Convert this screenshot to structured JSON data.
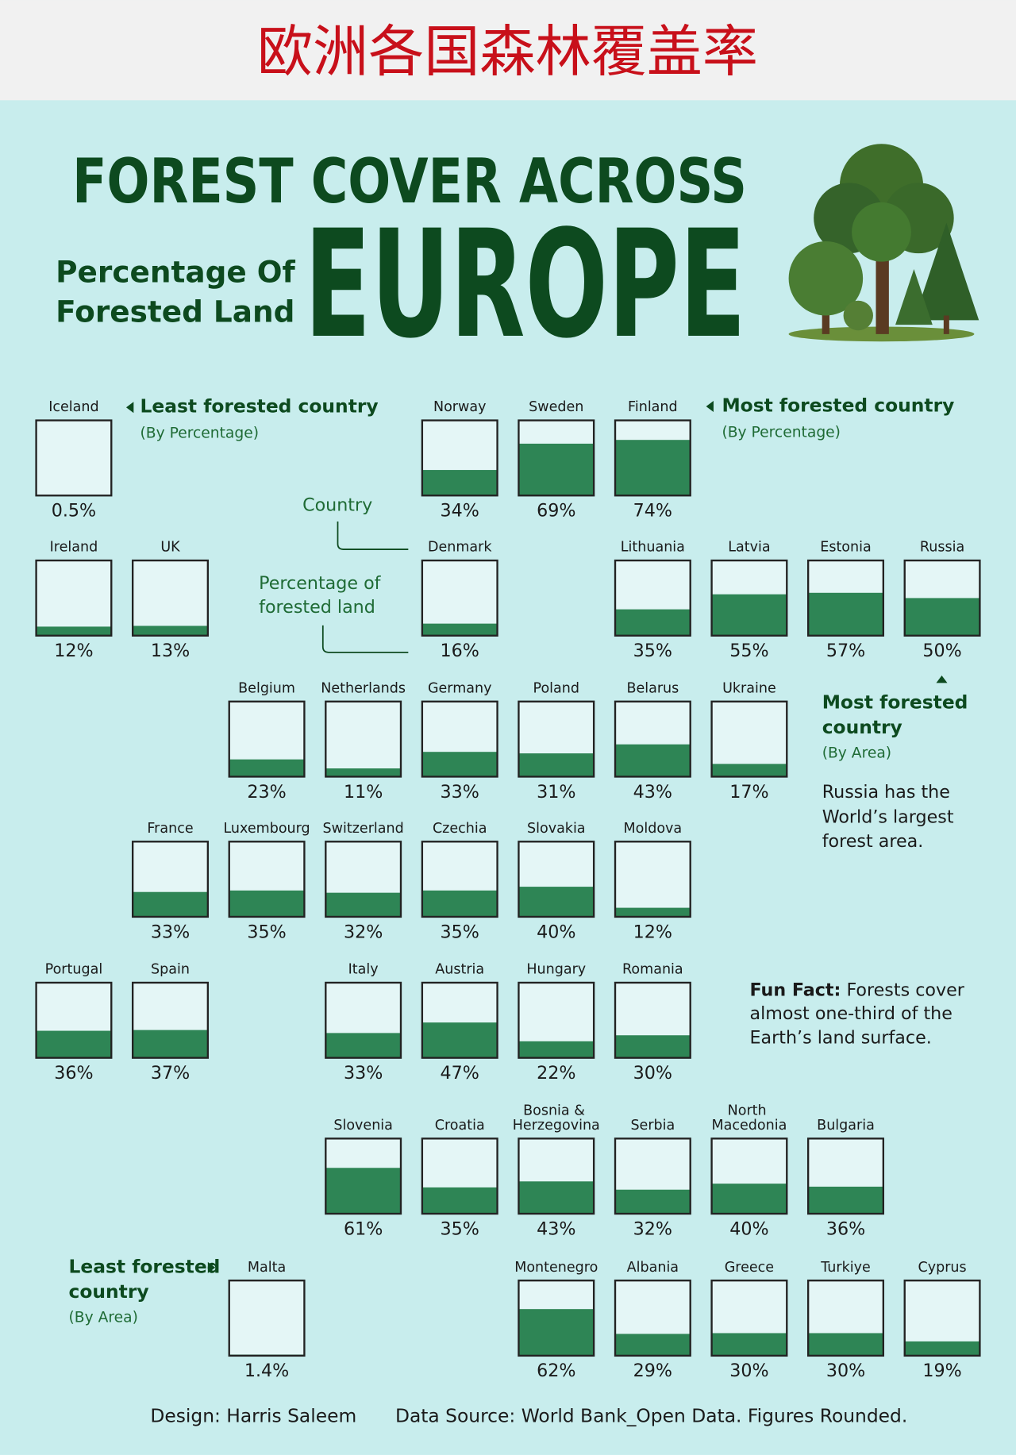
{
  "header": {
    "title": "欧洲各国森林覆盖率"
  },
  "title": {
    "line1": "FOREST COVER ACROSS",
    "line2": "EUROPE"
  },
  "subtitle": [
    "Percentage Of",
    "Forested Land"
  ],
  "countries": [
    {
      "name": "Iceland",
      "value": 0.5,
      "value_label": "0.5%"
    },
    {
      "name": "Norway",
      "value": 34,
      "value_label": "34%"
    },
    {
      "name": "Sweden",
      "value": 69,
      "value_label": "69%"
    },
    {
      "name": "Finland",
      "value": 74,
      "value_label": "74%"
    },
    {
      "name": "Ireland",
      "value": 12,
      "value_label": "12%"
    },
    {
      "name": "UK",
      "value": 13,
      "value_label": "13%"
    },
    {
      "name": "Denmark",
      "value": 16,
      "value_label": "16%"
    },
    {
      "name": "Lithuania",
      "value": 35,
      "value_label": "35%"
    },
    {
      "name": "Latvia",
      "value": 55,
      "value_label": "55%"
    },
    {
      "name": "Estonia",
      "value": 57,
      "value_label": "57%"
    },
    {
      "name": "Russia",
      "value": 50,
      "value_label": "50%"
    },
    {
      "name": "Belgium",
      "value": 23,
      "value_label": "23%"
    },
    {
      "name": "Netherlands",
      "value": 11,
      "value_label": "11%"
    },
    {
      "name": "Germany",
      "value": 33,
      "value_label": "33%"
    },
    {
      "name": "Poland",
      "value": 31,
      "value_label": "31%"
    },
    {
      "name": "Belarus",
      "value": 43,
      "value_label": "43%"
    },
    {
      "name": "Ukraine",
      "value": 17,
      "value_label": "17%"
    },
    {
      "name": "France",
      "value": 33,
      "value_label": "33%"
    },
    {
      "name": "Luxembourg",
      "value": 35,
      "value_label": "35%"
    },
    {
      "name": "Switzerland",
      "value": 32,
      "value_label": "32%"
    },
    {
      "name": "Czechia",
      "value": 35,
      "value_label": "35%"
    },
    {
      "name": "Slovakia",
      "value": 40,
      "value_label": "40%"
    },
    {
      "name": "Moldova",
      "value": 12,
      "value_label": "12%"
    },
    {
      "name": "Portugal",
      "value": 36,
      "value_label": "36%"
    },
    {
      "name": "Spain",
      "value": 37,
      "value_label": "37%"
    },
    {
      "name": "Italy",
      "value": 33,
      "value_label": "33%"
    },
    {
      "name": "Austria",
      "value": 47,
      "value_label": "47%"
    },
    {
      "name": "Hungary",
      "value": 22,
      "value_label": "22%"
    },
    {
      "name": "Romania",
      "value": 30,
      "value_label": "30%"
    },
    {
      "name": "Slovenia",
      "value": 61,
      "value_label": "61%"
    },
    {
      "name": "Croatia",
      "value": 35,
      "value_label": "35%"
    },
    {
      "name": "Bosnia & Herzegovina",
      "value": 43,
      "value_label": "43%"
    },
    {
      "name": "Serbia",
      "value": 32,
      "value_label": "32%"
    },
    {
      "name": "North Macedonia",
      "value": 40,
      "value_label": "40%"
    },
    {
      "name": "Bulgaria",
      "value": 36,
      "value_label": "36%"
    },
    {
      "name": "Malta",
      "value": 1.4,
      "value_label": "1.4%"
    },
    {
      "name": "Montenegro",
      "value": 62,
      "value_label": "62%"
    },
    {
      "name": "Albania",
      "value": 29,
      "value_label": "29%"
    },
    {
      "name": "Greece",
      "value": 30,
      "value_label": "30%"
    },
    {
      "name": "Turkiye",
      "value": 30,
      "value_label": "30%"
    },
    {
      "name": "Cyprus",
      "value": 19,
      "value_label": "19%"
    }
  ],
  "key": {
    "country": "Country",
    "percentage": [
      "Percentage of",
      "forested land"
    ]
  },
  "notes": {
    "least_pct": {
      "title": "Least forested country",
      "sub": "(By Percentage)"
    },
    "most_pct": {
      "title": "Most forested country",
      "sub": "(By Percentage)"
    },
    "most_area": {
      "title": [
        "Most forested",
        "country"
      ],
      "sub": "(By Area)",
      "text": [
        "Russia has the",
        "World’s largest",
        "forest area."
      ]
    },
    "least_area": {
      "title": [
        "Least forested",
        "country"
      ],
      "sub": "(By Area)"
    },
    "fun_fact": {
      "label": "Fun Fact:",
      "text": [
        "Forests cover",
        "almost one-third of the",
        "Earth’s land surface."
      ]
    }
  },
  "footer": {
    "design": "Design: Harris Saleem",
    "source": "Data Source: World Bank_Open Data. Figures Rounded."
  }
}
